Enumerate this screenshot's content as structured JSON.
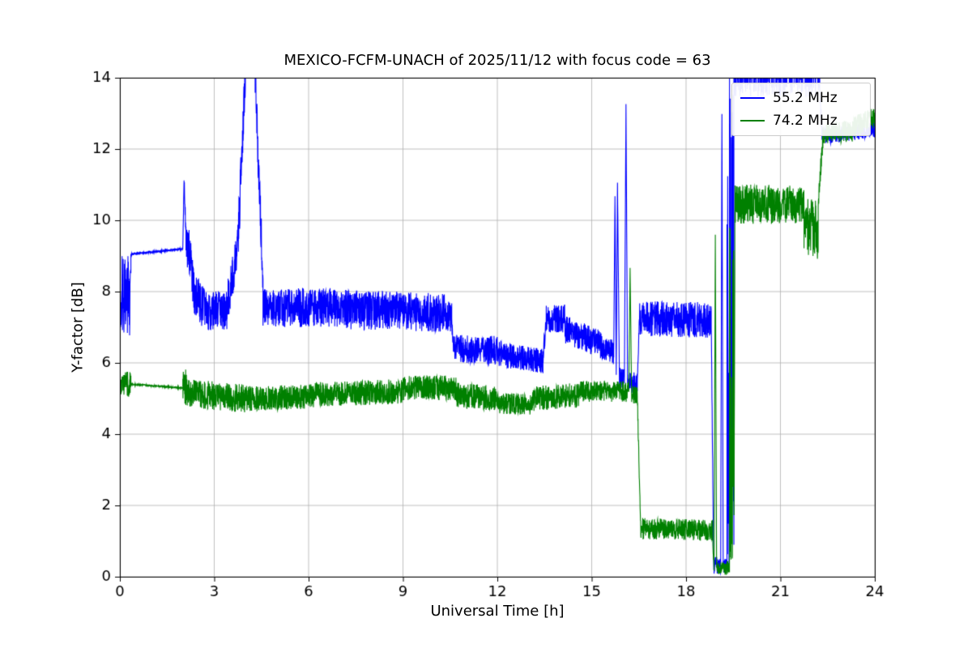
{
  "figure": {
    "background": "#ffffff",
    "border_color": "#000000",
    "grid_color": "#b0b0b0",
    "tick_color": "#000000"
  },
  "chart_data": {
    "type": "line",
    "title": "MEXICO-FCFM-UNACH of 2025/11/12 with focus code = 63",
    "xlabel": "Universal Time [h]",
    "ylabel": "Y-factor [dB]",
    "xlim": [
      0,
      24
    ],
    "ylim": [
      0,
      14
    ],
    "xticks": [
      0,
      3,
      6,
      9,
      12,
      15,
      18,
      21,
      24
    ],
    "yticks": [
      0,
      2,
      4,
      6,
      8,
      10,
      12,
      14
    ],
    "grid": true,
    "legend": {
      "position": "upper right"
    },
    "segment_format": "[x_start_h, x_end_h, y_start_dB, y_end_dB, noise_half_amplitude_dB]",
    "series": [
      {
        "name": "55.2 MHz",
        "color": "#0000ff",
        "segments": [
          [
            0.0,
            0.35,
            7.9,
            7.9,
            1.2
          ],
          [
            0.35,
            2.0,
            9.05,
            9.2,
            0.02
          ],
          [
            2.0,
            2.04,
            9.2,
            11.1,
            0.05
          ],
          [
            2.04,
            2.1,
            11.1,
            9.6,
            0.25
          ],
          [
            2.1,
            2.35,
            9.6,
            8.2,
            0.7
          ],
          [
            2.35,
            2.7,
            8.0,
            7.5,
            0.6
          ],
          [
            2.7,
            3.4,
            7.45,
            7.45,
            0.55
          ],
          [
            3.4,
            3.75,
            7.6,
            9.2,
            0.6
          ],
          [
            3.75,
            4.0,
            9.2,
            14.5,
            0.7
          ],
          [
            4.0,
            4.3,
            14.7,
            14.7,
            0.7
          ],
          [
            4.3,
            4.55,
            14.0,
            8.3,
            0.6
          ],
          [
            4.55,
            7.0,
            7.55,
            7.55,
            0.55
          ],
          [
            7.0,
            10.55,
            7.5,
            7.4,
            0.55
          ],
          [
            10.55,
            10.62,
            7.2,
            6.4,
            0.3
          ],
          [
            10.62,
            12.0,
            6.4,
            6.35,
            0.4
          ],
          [
            12.0,
            13.45,
            6.25,
            6.05,
            0.35
          ],
          [
            13.45,
            13.55,
            6.1,
            7.25,
            0.3
          ],
          [
            13.55,
            14.15,
            7.25,
            7.25,
            0.4
          ],
          [
            14.15,
            15.35,
            6.95,
            6.5,
            0.4
          ],
          [
            15.35,
            15.7,
            6.4,
            6.3,
            0.35
          ],
          [
            15.7,
            15.74,
            6.3,
            10.6,
            0.1
          ],
          [
            15.74,
            15.78,
            10.6,
            5.7,
            0.1
          ],
          [
            15.78,
            15.82,
            5.7,
            11.0,
            0.1
          ],
          [
            15.82,
            15.88,
            11.0,
            5.6,
            0.1
          ],
          [
            15.88,
            16.04,
            5.6,
            5.6,
            0.3
          ],
          [
            16.04,
            16.09,
            5.6,
            13.2,
            0.1
          ],
          [
            16.09,
            16.14,
            13.2,
            5.4,
            0.1
          ],
          [
            16.14,
            16.45,
            5.45,
            5.45,
            0.3
          ],
          [
            16.45,
            16.52,
            5.45,
            7.25,
            0.2
          ],
          [
            16.52,
            18.8,
            7.25,
            7.2,
            0.5
          ],
          [
            18.8,
            18.88,
            7.0,
            0.3,
            0.2
          ],
          [
            18.88,
            19.1,
            0.3,
            0.3,
            0.25
          ],
          [
            19.1,
            19.14,
            0.3,
            12.9,
            0.1
          ],
          [
            19.14,
            19.18,
            12.9,
            0.3,
            0.1
          ],
          [
            19.18,
            19.3,
            0.3,
            0.3,
            0.2
          ],
          [
            19.3,
            19.52,
            7.0,
            7.0,
            7.0
          ],
          [
            19.52,
            22.25,
            14.35,
            14.35,
            0.9
          ],
          [
            22.25,
            22.35,
            13.5,
            12.2,
            0.3
          ],
          [
            22.35,
            24.0,
            12.35,
            12.55,
            0.22
          ]
        ]
      },
      {
        "name": "74.2 MHz",
        "color": "#008000",
        "segments": [
          [
            0.0,
            0.35,
            5.4,
            5.4,
            0.35
          ],
          [
            0.35,
            2.0,
            5.4,
            5.3,
            0.02
          ],
          [
            2.0,
            2.12,
            5.3,
            5.3,
            0.55
          ],
          [
            2.12,
            4.0,
            5.15,
            5.0,
            0.4
          ],
          [
            4.0,
            6.0,
            5.0,
            5.05,
            0.35
          ],
          [
            6.0,
            9.0,
            5.1,
            5.2,
            0.35
          ],
          [
            9.0,
            10.7,
            5.3,
            5.3,
            0.35
          ],
          [
            10.7,
            12.0,
            5.1,
            5.0,
            0.35
          ],
          [
            12.0,
            13.1,
            4.85,
            4.85,
            0.3
          ],
          [
            13.1,
            14.6,
            5.0,
            5.1,
            0.35
          ],
          [
            14.6,
            16.18,
            5.2,
            5.2,
            0.3
          ],
          [
            16.18,
            16.22,
            5.2,
            8.6,
            0.1
          ],
          [
            16.22,
            16.27,
            8.6,
            5.0,
            0.1
          ],
          [
            16.27,
            16.45,
            5.1,
            5.1,
            0.25
          ],
          [
            16.45,
            16.55,
            5.1,
            1.5,
            0.2
          ],
          [
            16.55,
            18.85,
            1.35,
            1.3,
            0.3
          ],
          [
            18.85,
            18.89,
            1.0,
            0.25,
            0.15
          ],
          [
            18.89,
            18.93,
            0.25,
            9.5,
            0.1
          ],
          [
            18.93,
            18.97,
            9.5,
            0.25,
            0.1
          ],
          [
            18.97,
            19.38,
            0.25,
            0.25,
            0.2
          ],
          [
            19.38,
            19.55,
            5.3,
            5.3,
            5.0
          ],
          [
            19.55,
            21.75,
            10.45,
            10.45,
            0.55
          ],
          [
            21.75,
            22.2,
            9.95,
            9.7,
            0.85
          ],
          [
            22.2,
            22.35,
            10.5,
            12.3,
            0.3
          ],
          [
            22.35,
            23.3,
            12.45,
            12.5,
            0.3
          ],
          [
            23.3,
            24.0,
            12.6,
            12.9,
            0.3
          ]
        ]
      }
    ]
  }
}
